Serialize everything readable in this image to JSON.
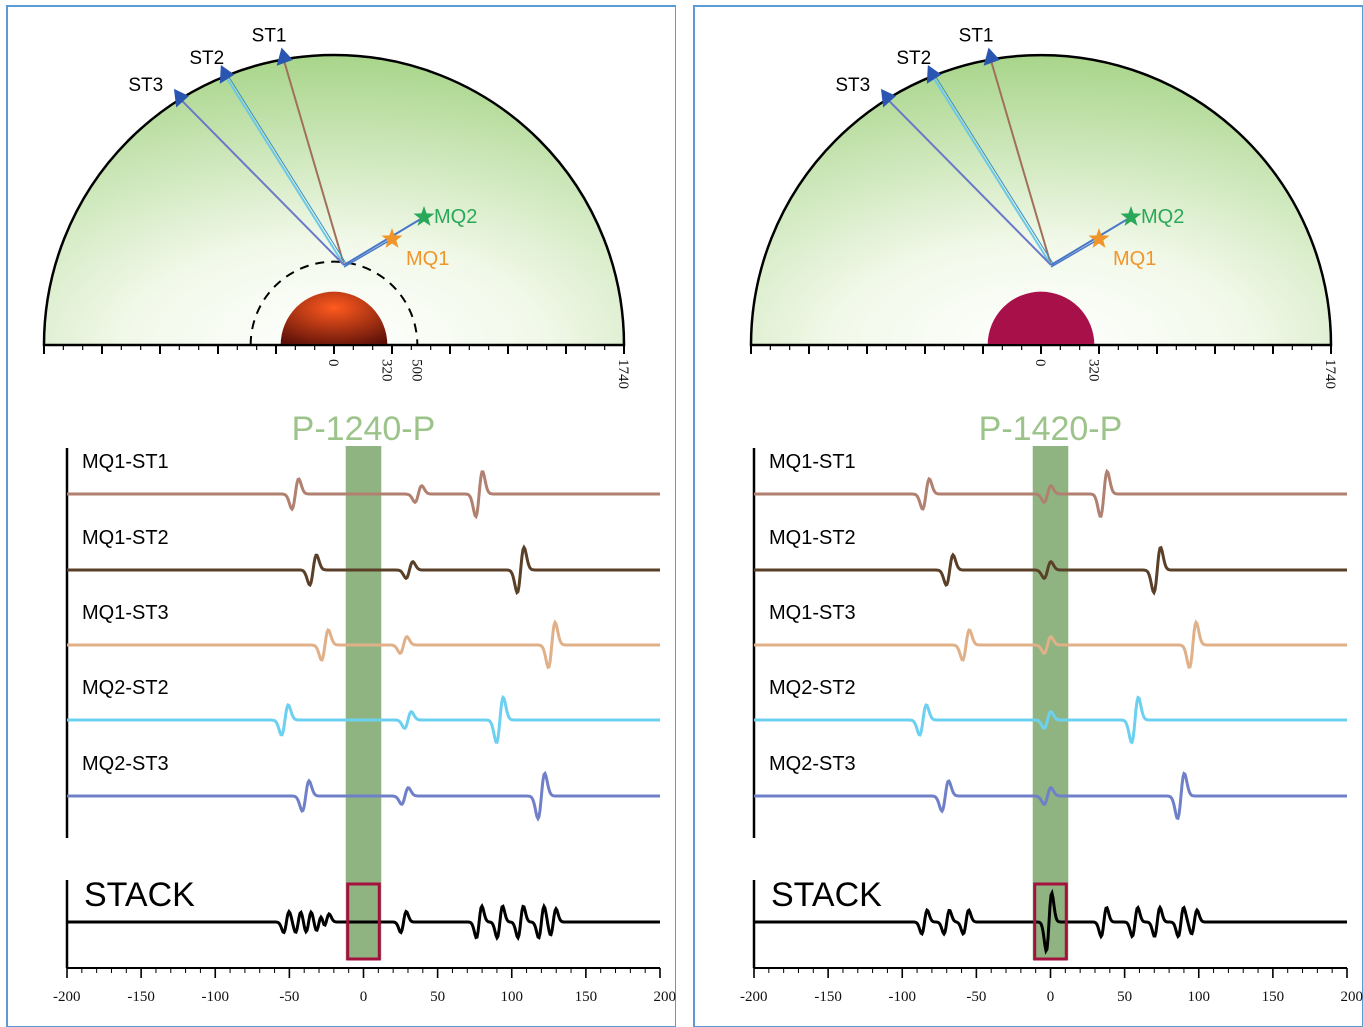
{
  "colors": {
    "frame": "#5b9bd5",
    "mantle_edge": "#a8d58a",
    "mantle_center": "#ffffff",
    "core_left_edge": "#5a0f08",
    "core_left_center": "#ff5a1f",
    "core_right": "#a8104a",
    "window": "#8ab07a",
    "window_label": "#9cc48a",
    "box": "#a3123f",
    "station": "#2a55b0",
    "mq1": "#f0952a",
    "mq2": "#2aa85a",
    "ray_st1": "#a0705a",
    "ray_st2": "#6cc8e8",
    "ray_st3": "#6a78c8",
    "ray_mq": "#4a78c8",
    "stack": "#000000"
  },
  "panels": [
    {
      "window_label": "P-1240-P",
      "core_style": "gradient",
      "show_dashed_ring": true,
      "radius_labels": [
        "0",
        "320",
        "500",
        "1740"
      ],
      "stations": [
        "ST1",
        "ST2",
        "ST3"
      ],
      "events": [
        "MQ1",
        "MQ2"
      ],
      "traces": [
        {
          "label": "MQ1-ST1",
          "color": "#b08070",
          "arrivals": [
            {
              "t": -46,
              "a": 1.0
            },
            {
              "t": 37,
              "a": 0.55
            },
            {
              "t": 78,
              "a": 1.5
            }
          ]
        },
        {
          "label": "MQ1-ST2",
          "color": "#5a4028",
          "arrivals": [
            {
              "t": -34,
              "a": 1.0
            },
            {
              "t": 31,
              "a": 0.55
            },
            {
              "t": 106,
              "a": 1.5
            }
          ]
        },
        {
          "label": "MQ1-ST3",
          "color": "#e0b088",
          "arrivals": [
            {
              "t": -26,
              "a": 1.0
            },
            {
              "t": 27,
              "a": 0.55
            },
            {
              "t": 127,
              "a": 1.5
            }
          ]
        },
        {
          "label": "MQ2-ST2",
          "color": "#6cd0f0",
          "arrivals": [
            {
              "t": -53,
              "a": 1.0
            },
            {
              "t": 30,
              "a": 0.55
            },
            {
              "t": 92,
              "a": 1.5
            }
          ]
        },
        {
          "label": "MQ2-ST3",
          "color": "#7080c8",
          "arrivals": [
            {
              "t": -39,
              "a": 1.0
            },
            {
              "t": 28,
              "a": 0.55
            },
            {
              "t": 120,
              "a": 1.5
            }
          ]
        }
      ],
      "stack": {
        "label": "STACK",
        "arrivals": [
          {
            "t": -52,
            "a": 0.8
          },
          {
            "t": -44,
            "a": 0.8
          },
          {
            "t": -37,
            "a": 0.8
          },
          {
            "t": -30,
            "a": 0.7
          },
          {
            "t": -25,
            "a": 0.6
          },
          {
            "t": 0,
            "a": 0.0
          },
          {
            "t": 27,
            "a": 0.8
          },
          {
            "t": 78,
            "a": 1.2
          },
          {
            "t": 92,
            "a": 1.2
          },
          {
            "t": 106,
            "a": 1.2
          },
          {
            "t": 120,
            "a": 1.2
          },
          {
            "t": 128,
            "a": 1.0
          }
        ]
      },
      "x_ticks": [
        "-200",
        "-150",
        "-100",
        "-50",
        "0",
        "50",
        "100",
        "150",
        "200"
      ]
    },
    {
      "window_label": "P-1420-P",
      "core_style": "solid",
      "show_dashed_ring": false,
      "radius_labels": [
        "0",
        "320",
        "1740"
      ],
      "stations": [
        "ST1",
        "ST2",
        "ST3"
      ],
      "events": [
        "MQ1",
        "MQ2"
      ],
      "traces": [
        {
          "label": "MQ1-ST1",
          "color": "#b08070",
          "arrivals": [
            {
              "t": -84,
              "a": 1.0
            },
            {
              "t": -2,
              "a": 0.55
            },
            {
              "t": 36,
              "a": 1.5
            }
          ]
        },
        {
          "label": "MQ1-ST2",
          "color": "#5a4028",
          "arrivals": [
            {
              "t": -68,
              "a": 1.0
            },
            {
              "t": -2,
              "a": 0.55
            },
            {
              "t": 72,
              "a": 1.5
            }
          ]
        },
        {
          "label": "MQ1-ST3",
          "color": "#e0b088",
          "arrivals": [
            {
              "t": -57,
              "a": 1.0
            },
            {
              "t": -2,
              "a": 0.55
            },
            {
              "t": 96,
              "a": 1.5
            }
          ]
        },
        {
          "label": "MQ2-ST2",
          "color": "#6cd0f0",
          "arrivals": [
            {
              "t": -86,
              "a": 1.0
            },
            {
              "t": -2,
              "a": 0.55
            },
            {
              "t": 57,
              "a": 1.5
            }
          ]
        },
        {
          "label": "MQ2-ST3",
          "color": "#7080c8",
          "arrivals": [
            {
              "t": -71,
              "a": 1.0
            },
            {
              "t": -2,
              "a": 0.55
            },
            {
              "t": 88,
              "a": 1.5
            }
          ]
        }
      ],
      "stack": {
        "label": "STACK",
        "arrivals": [
          {
            "t": -85,
            "a": 0.9
          },
          {
            "t": -70,
            "a": 0.9
          },
          {
            "t": -57,
            "a": 0.9
          },
          {
            "t": -1,
            "a": 2.2
          },
          {
            "t": 36,
            "a": 1.1
          },
          {
            "t": 57,
            "a": 1.1
          },
          {
            "t": 72,
            "a": 1.1
          },
          {
            "t": 88,
            "a": 1.1
          },
          {
            "t": 97,
            "a": 0.9
          }
        ]
      },
      "x_ticks": [
        "-200",
        "-150",
        "-100",
        "-50",
        "0",
        "50",
        "100",
        "150",
        "200"
      ]
    }
  ]
}
